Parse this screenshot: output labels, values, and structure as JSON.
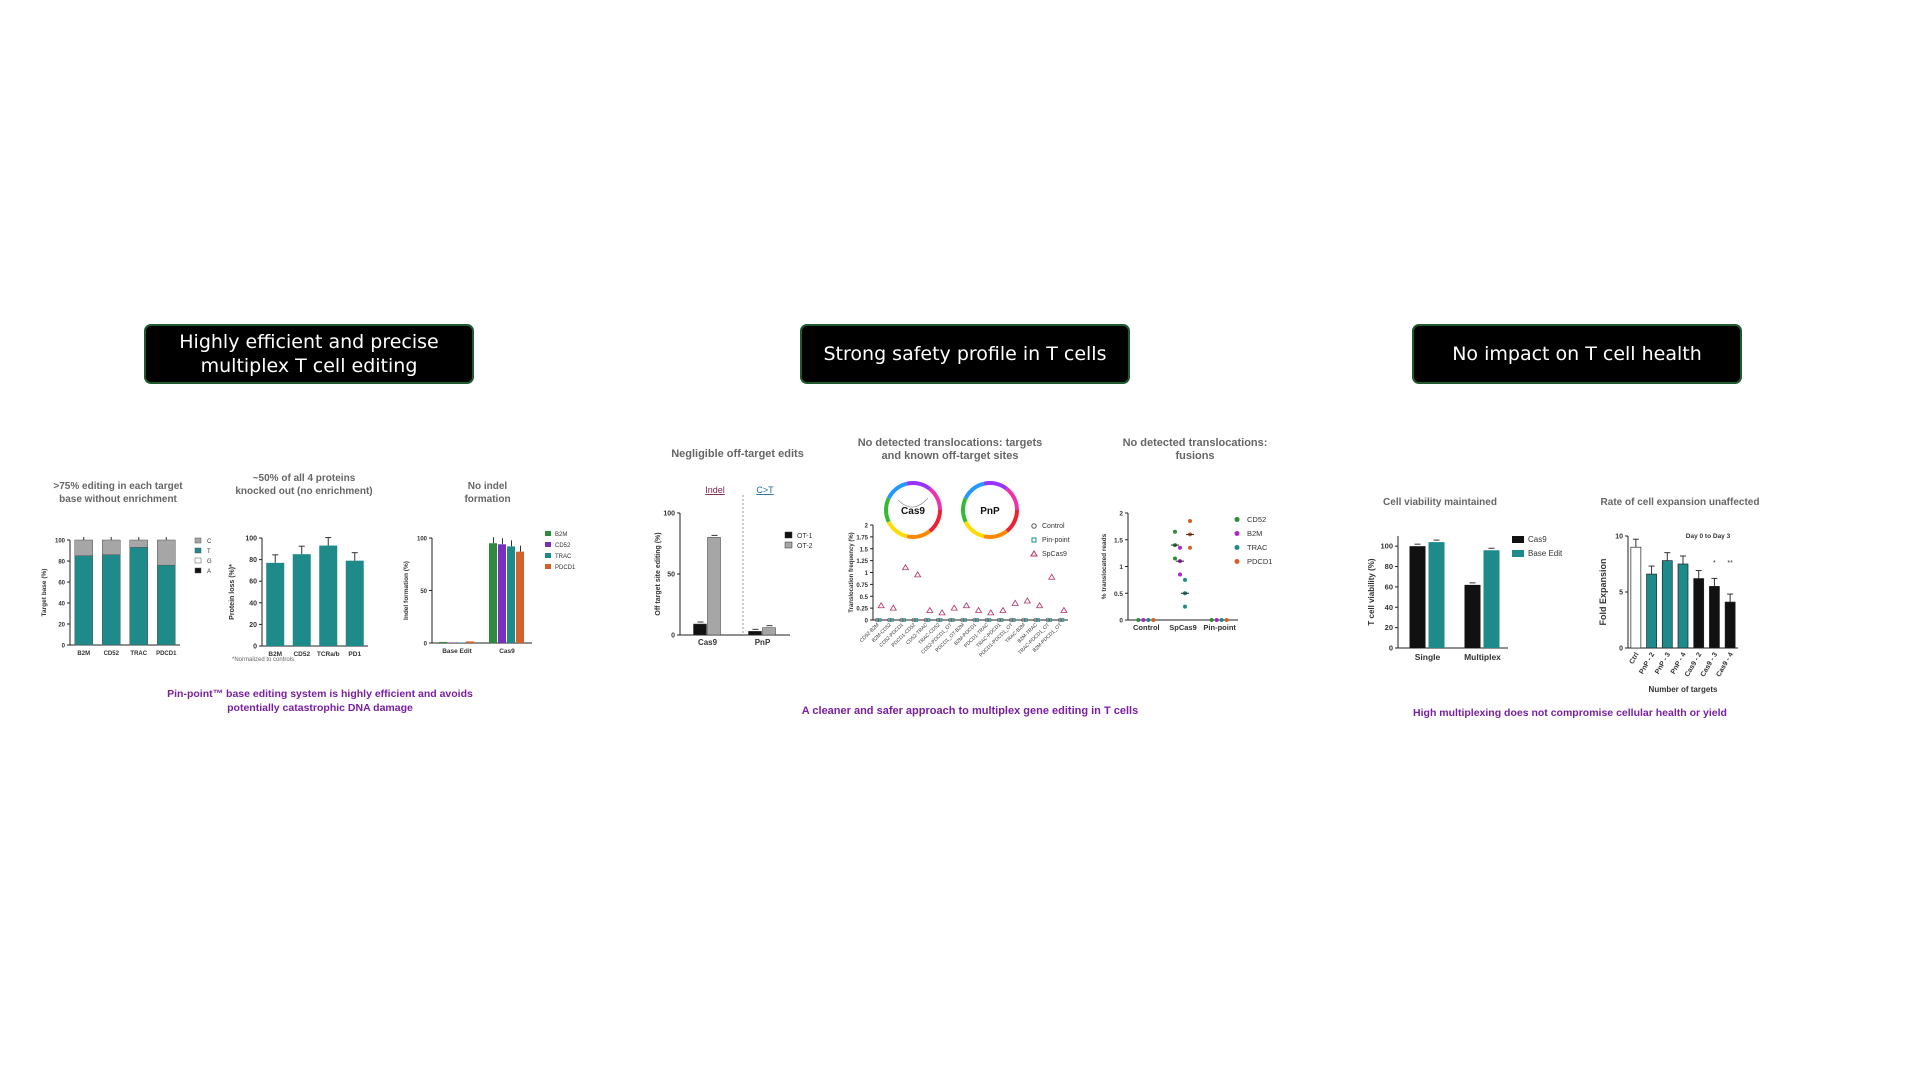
{
  "banners": {
    "editing": "Highly efficient and precise multiplex T cell editing",
    "safety": "Strong safety profile in T cells",
    "health": "No impact on T cell health"
  },
  "panels": {
    "p1": {
      "title_a": ">75% editing in each target base without enrichment",
      "title_b": "~50% of all 4 proteins knocked out (no enrichment)",
      "title_c": "No indel formation",
      "footnote": "*Normalized to controls",
      "caption": "Pin-point™ base editing system is highly efficient and avoids potentially catastrophic DNA damage"
    },
    "p2": {
      "title_a": "Negligible off-target edits",
      "title_b": "No detected translocations: targets and known off-target sites",
      "title_c": "No detected translocations: fusions",
      "caption": "A cleaner and safer approach to multiplex gene editing in T cells",
      "label_indel": "Indel",
      "label_ct": "C>T",
      "circle_cas9": "Cas9",
      "circle_pnp": "PnP"
    },
    "p3": {
      "title_a": "Cell viability maintained",
      "title_b": "Rate of cell expansion unaffected",
      "caption": "High multiplexing does not compromise cellular health or yield",
      "annotation": "Day 0 to Day 3"
    }
  },
  "colors": {
    "teal": "#1f8a8a",
    "black": "#111111",
    "grey": "#a6a6a6",
    "purple": "#7a1fa2",
    "green": "#2e8b3e",
    "orange": "#d4602a",
    "violet": "#7b2fbe"
  },
  "chart_data": [
    {
      "id": "c1",
      "type": "bar",
      "stacked": true,
      "categories": [
        "B2M",
        "CD52",
        "TRAC",
        "PDCD1"
      ],
      "ylabel": "Target base (%)",
      "ylim": [
        0,
        100
      ],
      "yticks": [
        0,
        20,
        40,
        60,
        80,
        100
      ],
      "series": [
        {
          "name": "C",
          "color": "#a6a6a6",
          "values": [
            15,
            14,
            7,
            24
          ]
        },
        {
          "name": "T",
          "color": "#1f8a8a",
          "values": [
            85,
            86,
            93,
            76
          ]
        },
        {
          "name": "G",
          "color": "#ffffff",
          "values": [
            0,
            0,
            0,
            0
          ]
        },
        {
          "name": "A",
          "color": "#111111",
          "values": [
            0,
            0,
            0,
            0
          ]
        }
      ]
    },
    {
      "id": "c2",
      "type": "bar",
      "categories": [
        "B2M",
        "CD52",
        "TCRa/b",
        "PD1"
      ],
      "values": [
        77,
        85,
        93,
        79
      ],
      "ylabel": "Protein loss (%)*",
      "ylim": [
        0,
        100
      ],
      "yticks": [
        0,
        20,
        40,
        60,
        80,
        100
      ]
    },
    {
      "id": "c3",
      "type": "bar",
      "groups": [
        "Base Edit",
        "Cas9"
      ],
      "ylabel": "Indel formation (%)",
      "ylim": [
        0,
        100
      ],
      "yticks": [
        0,
        50,
        100
      ],
      "series": [
        {
          "name": "B2M",
          "color": "#2e8b3e",
          "values": [
            1,
            95
          ]
        },
        {
          "name": "CD52",
          "color": "#7b2fbe",
          "values": [
            0.5,
            94
          ]
        },
        {
          "name": "TRAC",
          "color": "#1f8a8a",
          "values": [
            0.5,
            92
          ]
        },
        {
          "name": "PDCD1",
          "color": "#d4602a",
          "values": [
            1.5,
            87
          ]
        }
      ]
    },
    {
      "id": "c4",
      "type": "bar",
      "groups": [
        "Cas9",
        "PnP"
      ],
      "ylabel": "Off target site editing (%)",
      "ylim": [
        0,
        100
      ],
      "yticks": [
        0,
        50,
        100
      ],
      "series": [
        {
          "name": "OT-1",
          "color": "#111111",
          "values": [
            9,
            3
          ]
        },
        {
          "name": "OT-2",
          "color": "#a6a6a6",
          "values": [
            80,
            6
          ]
        }
      ]
    },
    {
      "id": "c5",
      "type": "scatter",
      "categories": [
        "CD52-B2M",
        "B2M-CD52",
        "CD52-PDCD1",
        "PDCD1-CD52",
        "CD52-TRAC",
        "TRAC-CD52",
        "CD52-PDCD1_OT",
        "PDCD1_OT-B2M",
        "B2M-PDCD1",
        "PDCD1-TRAC",
        "TRAC-PDCD1",
        "PDCD1-PDCD1_OT",
        "TRAC-B2M",
        "B2M-TRAC",
        "TRAC-PDCD1_OT",
        "B2M-PDCD1_OT"
      ],
      "ylabel": "Translocation frequency (%)",
      "ylim": [
        0,
        2.0
      ],
      "yticks": [
        0,
        0.25,
        0.5,
        0.75,
        1.0,
        1.25,
        1.5,
        1.75,
        2.0
      ],
      "series": [
        {
          "name": "Control",
          "values": [
            0,
            0,
            0,
            0,
            0,
            0,
            0,
            0,
            0,
            0,
            0,
            0,
            0,
            0,
            0,
            0
          ]
        },
        {
          "name": "Pin-point",
          "values": [
            0,
            0,
            0,
            0,
            0,
            0,
            0,
            0,
            0,
            0,
            0,
            0,
            0,
            0,
            0,
            0
          ]
        },
        {
          "name": "SpCas9",
          "values": [
            0.3,
            0.25,
            1.1,
            0.95,
            0.2,
            0.15,
            0.25,
            0.3,
            0.2,
            0.15,
            0.2,
            0.35,
            0.4,
            0.3,
            0.9,
            0.2
          ]
        }
      ]
    },
    {
      "id": "c6",
      "type": "scatter",
      "categories": [
        "Control",
        "SpCas9",
        "Pin-point"
      ],
      "ylabel": "% translocated reads",
      "ylim": [
        0,
        2.0
      ],
      "yticks": [
        0,
        0.5,
        1.0,
        1.5,
        2.0
      ],
      "series": [
        {
          "name": "CD52",
          "color": "#2e8b3e",
          "values": [
            0,
            1.65,
            0
          ]
        },
        {
          "name": "B2M",
          "color": "#b026c6",
          "values": [
            0,
            1.35,
            0
          ]
        },
        {
          "name": "TRAC",
          "color": "#1f8a8a",
          "values": [
            0,
            0.75,
            0
          ]
        },
        {
          "name": "PDCD1",
          "color": "#d4602a",
          "values": [
            0,
            1.85,
            0
          ]
        }
      ]
    },
    {
      "id": "c7",
      "type": "bar",
      "groups": [
        "Single",
        "Multiplex"
      ],
      "ylabel": "T cell viability (%)",
      "ylim": [
        0,
        110
      ],
      "yticks": [
        0,
        20,
        40,
        60,
        80,
        100
      ],
      "series": [
        {
          "name": "Cas9",
          "color": "#111111",
          "values": [
            100,
            62
          ]
        },
        {
          "name": "Base Edit",
          "color": "#1f8a8a",
          "values": [
            104,
            96
          ]
        }
      ]
    },
    {
      "id": "c8",
      "type": "bar",
      "categories": [
        "Ctrl",
        "PnP - 2",
        "PnP - 3",
        "PnP - 4",
        "Cas9 - 2",
        "Cas9 - 3",
        "Cas9 - 4"
      ],
      "values": [
        9,
        6.6,
        7.8,
        7.5,
        6.2,
        5.5,
        4.1
      ],
      "colors": [
        "#ffffff",
        "#1f8a8a",
        "#1f8a8a",
        "#1f8a8a",
        "#111111",
        "#111111",
        "#111111"
      ],
      "ylabel": "Fold Expansion",
      "xlabel": "Number of targets",
      "ylim": [
        0,
        10
      ],
      "yticks": [
        0,
        5,
        10
      ],
      "annotations": [
        "*",
        "**"
      ]
    }
  ]
}
